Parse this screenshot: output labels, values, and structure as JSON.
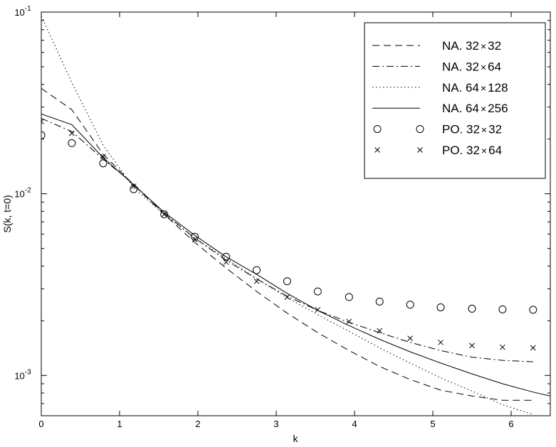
{
  "chart_data": {
    "type": "line",
    "title": "",
    "xlabel": "k",
    "ylabel": "S(k, t=0)",
    "xlim": [
      0,
      6.5
    ],
    "ylim": [
      0.0006,
      0.1
    ],
    "yscale": "log",
    "grid": false,
    "legend_position": "top-right",
    "x_ticks": [
      0,
      1,
      2,
      3,
      4,
      5,
      6
    ],
    "x_tick_labels": [
      "0",
      "1",
      "2",
      "3",
      "4",
      "5",
      "6"
    ],
    "y_ticks": [
      0.001,
      0.01,
      0.1
    ],
    "y_tick_labels": [
      {
        "base": "10",
        "exp": "-3"
      },
      {
        "base": "10",
        "exp": "-2"
      },
      {
        "base": "10",
        "exp": "-1"
      }
    ],
    "series": [
      {
        "name": "NA. 32×32",
        "style": "dashed",
        "marker": "none",
        "x": [
          0,
          0.39,
          0.79,
          1.18,
          1.57,
          1.96,
          2.36,
          2.75,
          3.14,
          3.53,
          3.93,
          4.32,
          4.71,
          5.1,
          5.5,
          5.89,
          6.28
        ],
        "y": [
          0.038,
          0.029,
          0.0165,
          0.0112,
          0.0077,
          0.0054,
          0.0039,
          0.0029,
          0.0022,
          0.00172,
          0.00137,
          0.00112,
          0.00095,
          0.00083,
          0.00077,
          0.00073,
          0.00073
        ]
      },
      {
        "name": "NA. 32×64",
        "style": "dashdot",
        "marker": "none",
        "x": [
          0,
          0.39,
          0.79,
          1.18,
          1.57,
          1.96,
          2.36,
          2.75,
          3.14,
          3.53,
          3.93,
          4.32,
          4.71,
          5.1,
          5.5,
          5.89,
          6.28
        ],
        "y": [
          0.026,
          0.022,
          0.0155,
          0.0113,
          0.0078,
          0.0057,
          0.0043,
          0.0034,
          0.00273,
          0.00228,
          0.00196,
          0.00172,
          0.00152,
          0.00137,
          0.00126,
          0.00121,
          0.00119
        ]
      },
      {
        "name": "NA. 64×128",
        "style": "dotted",
        "marker": "none",
        "x": [
          0,
          0.39,
          0.79,
          1.18,
          1.57,
          1.96,
          2.36,
          2.75,
          3.14,
          3.53,
          3.93,
          4.32,
          4.71,
          5.1,
          5.5,
          5.89,
          6.28
        ],
        "y": [
          0.095,
          0.041,
          0.0185,
          0.0108,
          0.0077,
          0.0057,
          0.0044,
          0.0034,
          0.00268,
          0.00216,
          0.00175,
          0.00142,
          0.00117,
          0.00097,
          0.00082,
          0.00069,
          0.00061
        ]
      },
      {
        "name": "NA. 64×256",
        "style": "solid",
        "marker": "none",
        "x": [
          0,
          0.39,
          0.79,
          1.18,
          1.57,
          1.96,
          2.36,
          2.75,
          3.14,
          3.53,
          3.93,
          4.32,
          4.71,
          5.1,
          5.5,
          5.89,
          6.28,
          6.5
        ],
        "y": [
          0.0275,
          0.024,
          0.0158,
          0.0112,
          0.0079,
          0.0059,
          0.0045,
          0.0036,
          0.00283,
          0.00228,
          0.00188,
          0.00158,
          0.00135,
          0.00117,
          0.00102,
          0.0009,
          0.00081,
          0.00077
        ]
      },
      {
        "name": "PO. 32×32",
        "style": "none",
        "marker": "circle",
        "x": [
          0,
          0.39,
          0.79,
          1.18,
          1.57,
          1.96,
          2.36,
          2.75,
          3.14,
          3.53,
          3.93,
          4.32,
          4.71,
          5.1,
          5.5,
          5.89,
          6.28
        ],
        "y": [
          0.021,
          0.019,
          0.0147,
          0.0106,
          0.0077,
          0.0058,
          0.0045,
          0.0038,
          0.0033,
          0.0029,
          0.0027,
          0.00255,
          0.00245,
          0.00237,
          0.00233,
          0.00231,
          0.0023
        ]
      },
      {
        "name": "PO. 32×64",
        "style": "none",
        "marker": "x",
        "x": [
          0,
          0.39,
          0.79,
          1.18,
          1.57,
          1.96,
          2.36,
          2.75,
          3.14,
          3.53,
          3.93,
          4.32,
          4.71,
          5.1,
          5.5,
          5.89,
          6.28
        ],
        "y": [
          0.025,
          0.0215,
          0.016,
          0.011,
          0.0077,
          0.0056,
          0.0042,
          0.0033,
          0.0027,
          0.0023,
          0.00198,
          0.00176,
          0.0016,
          0.00152,
          0.00146,
          0.00143,
          0.00142
        ]
      }
    ],
    "legend": {
      "entries": [
        {
          "label": "NA. 32",
          "times": "×",
          "label_end": "32"
        },
        {
          "label": "NA. 32",
          "times": "×",
          "label_end": "64"
        },
        {
          "label": "NA. 64",
          "times": "×",
          "label_end": "128"
        },
        {
          "label": "NA. 64",
          "times": "×",
          "label_end": "256"
        },
        {
          "label": "PO. 32",
          "times": "×",
          "label_end": "32"
        },
        {
          "label": "PO. 32",
          "times": "×",
          "label_end": "64"
        }
      ]
    }
  }
}
